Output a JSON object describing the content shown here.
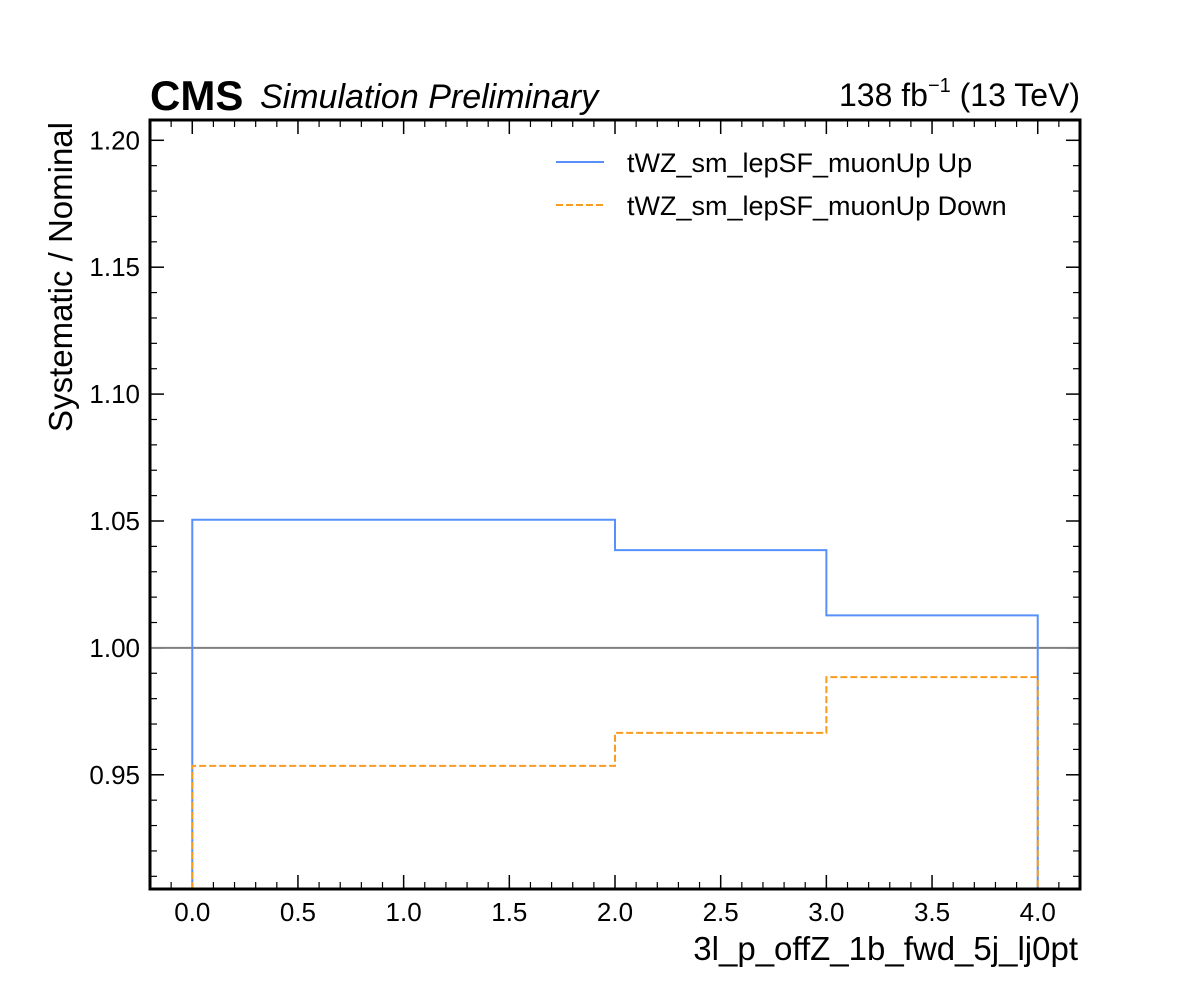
{
  "header": {
    "experiment": "CMS",
    "status": "Simulation Preliminary",
    "lumi_value": "138 fb",
    "lumi_exponent": "−1",
    "lumi_energy": " (13 TeV)"
  },
  "chart_data": {
    "type": "line",
    "drawstyle": "steps",
    "title": "",
    "xlabel": "3l_p_offZ_1b_fwd_5j_lj0pt",
    "ylabel": "Systematic / Nominal",
    "xlim": [
      -0.2,
      4.2
    ],
    "ylim": [
      0.905,
      1.208
    ],
    "x_ticks": [
      0.0,
      0.5,
      1.0,
      1.5,
      2.0,
      2.5,
      3.0,
      3.5,
      4.0
    ],
    "x_tick_labels": [
      "0.0",
      "0.5",
      "1.0",
      "1.5",
      "2.0",
      "2.5",
      "3.0",
      "3.5",
      "4.0"
    ],
    "y_ticks": [
      0.95,
      1.0,
      1.05,
      1.1,
      1.15,
      1.2
    ],
    "y_tick_labels": [
      "0.95",
      "1.00",
      "1.05",
      "1.10",
      "1.15",
      "1.20"
    ],
    "bin_edges": [
      0,
      2,
      3,
      4
    ],
    "reference_line": 1.0,
    "series": [
      {
        "name": "tWZ_sm_lepSF_muonUp Up",
        "values": [
          1.0505,
          1.0385,
          1.0128
        ],
        "color": "#5790fc",
        "dash": "solid"
      },
      {
        "name": "tWZ_sm_lepSF_muonUp Down",
        "values": [
          0.9535,
          0.9665,
          0.9885
        ],
        "color": "#f89c20",
        "dash": "dashed"
      }
    ],
    "legend_position": "top-right",
    "grid": false
  }
}
